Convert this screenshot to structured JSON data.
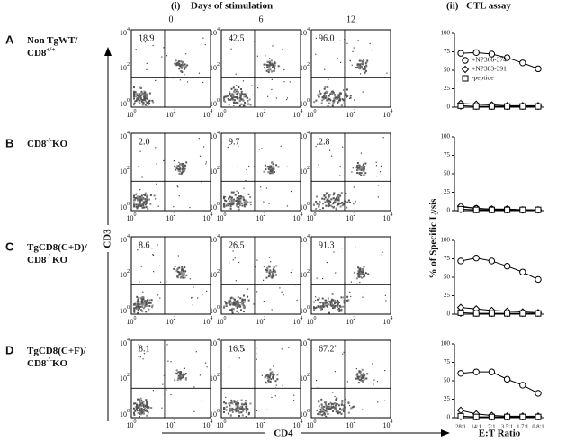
{
  "header": {
    "panel_i": "(i)",
    "panel_i_title": "Days of stimulation",
    "panel_ii": "(ii)",
    "panel_ii_title": "CTL assay",
    "days": [
      "0",
      "6",
      "12"
    ]
  },
  "rows": [
    {
      "letter": "A",
      "label": [
        {
          "text": "Non TgWT/"
        },
        {
          "text": "CD8",
          "sup": "+/+"
        }
      ],
      "percents": [
        "18.9",
        "42.5",
        "96.0"
      ]
    },
    {
      "letter": "B",
      "label": [
        {
          "text": "CD8",
          "sup": "-/-",
          "tail": "KO"
        }
      ],
      "percents": [
        "2.0",
        "9.7",
        "2.8"
      ]
    },
    {
      "letter": "C",
      "label": [
        {
          "text": "TgCD8(C+D)/"
        },
        {
          "text": "CD8",
          "sup": "-/-",
          "tail": "KO"
        }
      ],
      "percents": [
        "8.6",
        "26.5",
        "91.3"
      ]
    },
    {
      "letter": "D",
      "label": [
        {
          "text": "TgCD8(C+F)/"
        },
        {
          "text": "CD8",
          "sup": "-/-",
          "tail": "KO"
        }
      ],
      "percents": [
        "8.1",
        "16.5",
        "67.2"
      ]
    }
  ],
  "flow": {
    "y_label": "CD3",
    "x_label": "CD4",
    "ticks": [
      {
        "base": "10",
        "exp": "0"
      },
      {
        "base": "10",
        "exp": "2"
      },
      {
        "base": "10",
        "exp": "4"
      }
    ]
  },
  "cta": {
    "y_label": "% of Specific Lysis",
    "x_label": "E:T Ratio"
  },
  "chart_data": [
    {
      "type": "line",
      "ylim": [
        0,
        100
      ],
      "yticks": [
        0,
        25,
        50,
        75,
        100
      ],
      "series": [
        {
          "name": "+NP366-374",
          "marker": "circle",
          "color": "#000000",
          "values": [
            73,
            74,
            72,
            67,
            60,
            52
          ]
        },
        {
          "name": "+NP383-391",
          "marker": "diamond",
          "color": "#000000",
          "values": [
            5,
            4,
            3,
            2,
            2,
            2
          ]
        },
        {
          "name": "-peptide",
          "marker": "square",
          "color": "#000000",
          "values": [
            2,
            1,
            1,
            1,
            1,
            1
          ]
        }
      ]
    },
    {
      "type": "line",
      "ylim": [
        0,
        100
      ],
      "yticks": [
        0,
        25,
        50,
        75,
        100
      ],
      "series": [
        {
          "marker": "circle",
          "color": "#000000",
          "values": [
            5,
            3,
            2,
            2,
            1,
            1
          ]
        },
        {
          "marker": "diamond",
          "color": "#000000",
          "values": [
            6,
            3,
            2,
            2,
            1,
            1
          ]
        },
        {
          "marker": "square",
          "color": "#000000",
          "values": [
            2,
            1,
            1,
            1,
            1,
            1
          ]
        }
      ]
    },
    {
      "type": "line",
      "ylim": [
        0,
        100
      ],
      "yticks": [
        0,
        25,
        50,
        75,
        100
      ],
      "series": [
        {
          "marker": "circle",
          "color": "#000000",
          "values": [
            72,
            76,
            72,
            65,
            57,
            47
          ]
        },
        {
          "marker": "diamond",
          "color": "#000000",
          "values": [
            9,
            7,
            5,
            4,
            3,
            2
          ]
        },
        {
          "marker": "square",
          "color": "#000000",
          "values": [
            2,
            1,
            1,
            1,
            1,
            1
          ]
        }
      ]
    },
    {
      "type": "line",
      "ylim": [
        0,
        100
      ],
      "yticks": [
        0,
        25,
        50,
        75,
        100
      ],
      "categories": [
        "28:1",
        "14:1",
        "7:1",
        "3.5:1",
        "1.7:1",
        "0.8:1"
      ],
      "series": [
        {
          "marker": "circle",
          "color": "#000000",
          "values": [
            60,
            62,
            62,
            52,
            44,
            33
          ]
        },
        {
          "marker": "diamond",
          "color": "#000000",
          "values": [
            10,
            5,
            3,
            2,
            2,
            2
          ]
        },
        {
          "marker": "square",
          "color": "#000000",
          "values": [
            2,
            1,
            1,
            1,
            1,
            1
          ]
        }
      ]
    }
  ]
}
